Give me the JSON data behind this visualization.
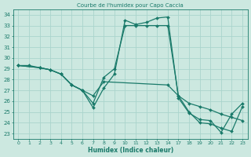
{
  "title": "Courbe de l'humidex pour Capo Caccia",
  "xlabel": "Humidex (Indice chaleur)",
  "bg_color": "#cce8e0",
  "line_color": "#1a7a6a",
  "grid_color": "#aad4cc",
  "ylim": [
    22.5,
    34.5
  ],
  "xtick_labels": [
    "0",
    "1",
    "2",
    "3",
    "4",
    "5",
    "6",
    "7",
    "8",
    "9",
    "10",
    "11",
    "12",
    "13",
    "14",
    "17",
    "18",
    "19",
    "20",
    "21",
    "22",
    "23"
  ],
  "yticks": [
    23,
    24,
    25,
    26,
    27,
    28,
    29,
    30,
    31,
    32,
    33,
    34
  ],
  "lines": [
    {
      "xi": [
        0,
        1,
        2,
        3,
        4,
        5,
        6,
        7,
        8,
        9,
        10,
        11,
        12,
        13,
        14,
        15,
        16,
        17,
        18,
        19,
        20,
        21
      ],
      "y": [
        29.3,
        29.3,
        29.1,
        28.9,
        28.5,
        27.5,
        27.0,
        25.4,
        27.2,
        28.5,
        33.5,
        33.1,
        33.3,
        33.7,
        33.8,
        26.3,
        24.9,
        24.3,
        24.2,
        23.1,
        24.8,
        25.8
      ]
    },
    {
      "xi": [
        0,
        2,
        3,
        4,
        5,
        6,
        7,
        8,
        9,
        10,
        11,
        12,
        13,
        14,
        15,
        16,
        17,
        18,
        19,
        20,
        21
      ],
      "y": [
        29.3,
        29.1,
        28.9,
        28.5,
        27.5,
        27.0,
        25.8,
        28.2,
        29.0,
        33.0,
        33.0,
        33.0,
        33.0,
        33.0,
        26.5,
        25.0,
        24.0,
        23.9,
        23.5,
        23.2,
        25.5
      ]
    },
    {
      "xi": [
        0,
        2,
        3,
        4,
        5,
        6,
        7,
        8,
        14,
        15,
        16,
        17,
        18,
        19,
        20,
        21
      ],
      "y": [
        29.3,
        29.1,
        28.9,
        28.5,
        27.5,
        27.0,
        26.5,
        27.8,
        27.5,
        26.5,
        25.8,
        25.5,
        25.2,
        24.8,
        24.5,
        24.2
      ]
    }
  ]
}
